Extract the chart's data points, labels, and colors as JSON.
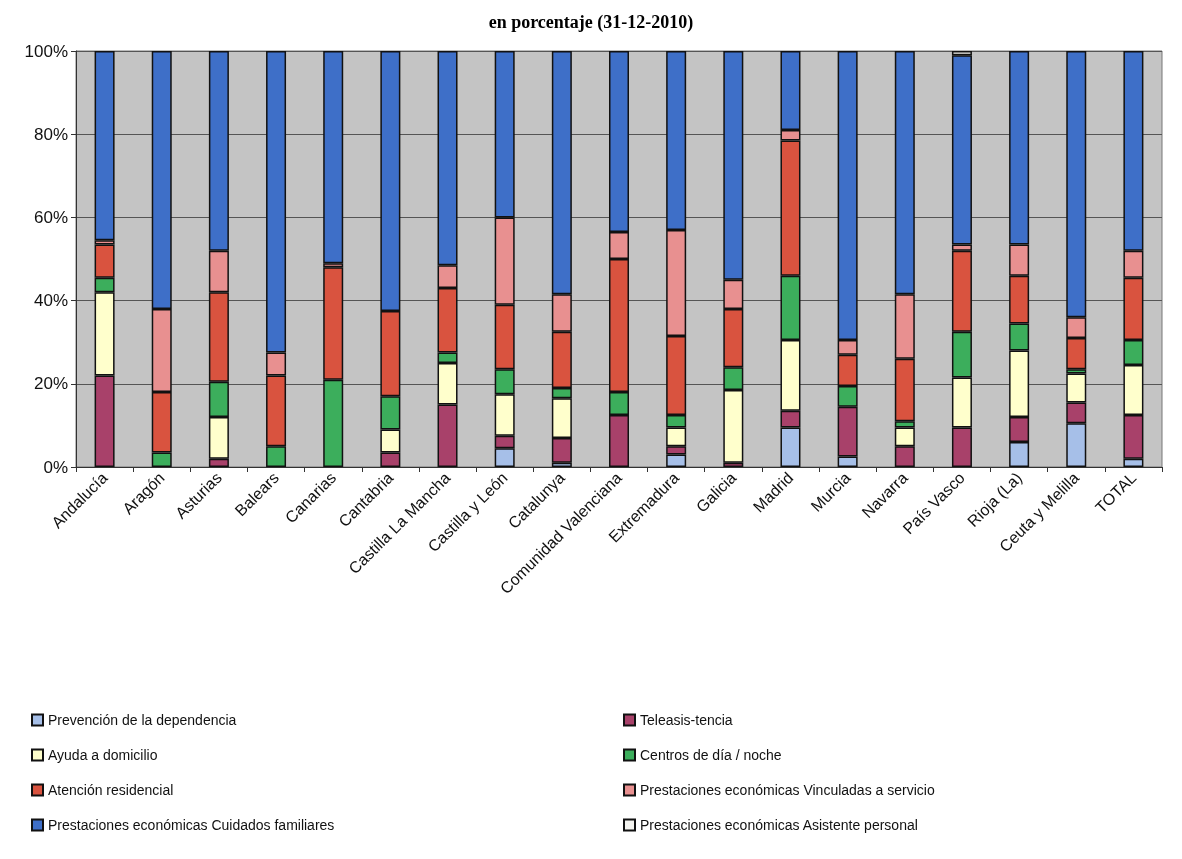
{
  "chart_data": {
    "type": "bar",
    "stacked": true,
    "title": "en porcentaje (31-12-2010)",
    "categories": [
      "Andalucía",
      "Aragón",
      "Asturias",
      "Balears",
      "Canarias",
      "Cantabria",
      "Castilla La Mancha",
      "Castilla y León",
      "Catalunya",
      "Comunidad Valenciana",
      "Extremadura",
      "Galicia",
      "Madrid",
      "Murcia",
      "Navarra",
      "País Vasco",
      "Rioja (La)",
      "Ceuta y Melilla",
      "TOTAL"
    ],
    "series": [
      {
        "name": "Prevención de la dependencia",
        "color": "#a6bfe8",
        "values": [
          null,
          null,
          null,
          null,
          null,
          null,
          null,
          4.5,
          1,
          null,
          3,
          null,
          9.5,
          2.5,
          null,
          null,
          6,
          10.5,
          2
        ]
      },
      {
        "name": "Teleasis-tencia",
        "color": "#a8416a",
        "values": [
          22,
          null,
          2,
          null,
          null,
          3.5,
          15,
          3,
          6,
          12.5,
          2,
          1,
          4,
          12,
          5,
          9.5,
          6,
          5,
          10.5
        ]
      },
      {
        "name": "Ayuda a domicilio",
        "color": "#ffffcc",
        "values": [
          20,
          null,
          10,
          null,
          null,
          5.5,
          10,
          10,
          9.5,
          null,
          4.5,
          17.5,
          17,
          null,
          4.5,
          12,
          16,
          7,
          12
        ]
      },
      {
        "name": "Centros de día / noche",
        "color": "#3cae5c",
        "values": [
          3.5,
          3.5,
          8.5,
          5,
          21,
          8,
          2.5,
          6,
          2.5,
          5.5,
          3,
          5.5,
          15.5,
          5,
          1.5,
          11,
          6.5,
          1,
          6
        ]
      },
      {
        "name": "Atención residencial",
        "color": "#d9533f",
        "values": [
          8,
          14.5,
          21.5,
          17,
          27,
          20.5,
          15.5,
          15.5,
          13.5,
          32,
          19,
          14,
          32.5,
          7.5,
          15,
          19.5,
          11.5,
          7.5,
          15
        ]
      },
      {
        "name": "Prestaciones económicas Vinculadas a servicio",
        "color": "#e89090",
        "values": [
          1,
          20,
          10,
          5.5,
          1,
          null,
          5.5,
          21,
          9,
          6.5,
          25.5,
          7,
          2.5,
          3.5,
          15.5,
          1.5,
          7.5,
          5,
          6.5
        ]
      },
      {
        "name": "Prestaciones económicas Cuidados familiares",
        "color": "#3e6fc8",
        "values": [
          45.5,
          62,
          48,
          72.5,
          51,
          62.5,
          51.5,
          40,
          58.5,
          43.5,
          43,
          55,
          19,
          69.5,
          58.5,
          45.5,
          46.5,
          64,
          48
        ]
      },
      {
        "name": "Prestaciones económicas Asistente personal",
        "color": "#f4f4f0",
        "values": [
          null,
          null,
          null,
          null,
          null,
          null,
          null,
          null,
          null,
          null,
          null,
          null,
          null,
          null,
          null,
          1,
          null,
          null,
          null
        ]
      }
    ],
    "ylim": [
      0,
      100
    ],
    "yticks": [
      {
        "value": 0,
        "label": "0%"
      },
      {
        "value": 20,
        "label": "20%"
      },
      {
        "value": 40,
        "label": "40%"
      },
      {
        "value": 60,
        "label": "60%"
      },
      {
        "value": 80,
        "label": "80%"
      },
      {
        "value": 100,
        "label": "100%"
      }
    ],
    "grid": "y",
    "legend": "bottom"
  }
}
